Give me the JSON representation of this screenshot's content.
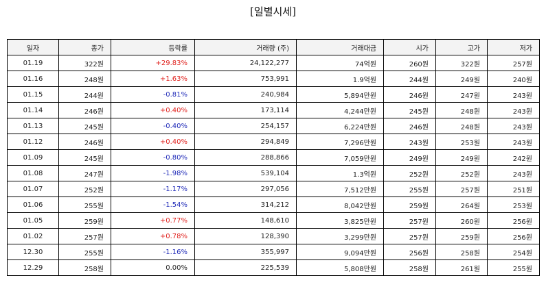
{
  "title": "[일별시세]",
  "colors": {
    "up": "#e0201c",
    "down": "#1f2ab8",
    "flat": "#222222",
    "header_bg": "#f3f3f3",
    "border": "#000000"
  },
  "columns": [
    "일자",
    "종가",
    "등락률",
    "거래량 (주)",
    "거래대금",
    "시가",
    "고가",
    "저가"
  ],
  "rows": [
    {
      "date": "01.19",
      "close": "322원",
      "change": "+29.83%",
      "dir": "up",
      "volume": "24,122,277",
      "amount": "74억원",
      "open": "260원",
      "high": "322원",
      "low": "257원"
    },
    {
      "date": "01.16",
      "close": "248원",
      "change": "+1.63%",
      "dir": "up",
      "volume": "753,991",
      "amount": "1.9억원",
      "open": "244원",
      "high": "249원",
      "low": "240원"
    },
    {
      "date": "01.15",
      "close": "244원",
      "change": "-0.81%",
      "dir": "down",
      "volume": "240,984",
      "amount": "5,894만원",
      "open": "246원",
      "high": "247원",
      "low": "243원"
    },
    {
      "date": "01.14",
      "close": "246원",
      "change": "+0.40%",
      "dir": "up",
      "volume": "173,114",
      "amount": "4,244만원",
      "open": "245원",
      "high": "248원",
      "low": "243원"
    },
    {
      "date": "01.13",
      "close": "245원",
      "change": "-0.40%",
      "dir": "down",
      "volume": "254,157",
      "amount": "6,224만원",
      "open": "246원",
      "high": "248원",
      "low": "243원"
    },
    {
      "date": "01.12",
      "close": "246원",
      "change": "+0.40%",
      "dir": "up",
      "volume": "294,849",
      "amount": "7,296만원",
      "open": "243원",
      "high": "253원",
      "low": "243원"
    },
    {
      "date": "01.09",
      "close": "245원",
      "change": "-0.80%",
      "dir": "down",
      "volume": "288,866",
      "amount": "7,059만원",
      "open": "249원",
      "high": "249원",
      "low": "242원"
    },
    {
      "date": "01.08",
      "close": "247원",
      "change": "-1.98%",
      "dir": "down",
      "volume": "539,104",
      "amount": "1.3억원",
      "open": "252원",
      "high": "252원",
      "low": "243원"
    },
    {
      "date": "01.07",
      "close": "252원",
      "change": "-1.17%",
      "dir": "down",
      "volume": "297,056",
      "amount": "7,512만원",
      "open": "255원",
      "high": "257원",
      "low": "251원"
    },
    {
      "date": "01.06",
      "close": "255원",
      "change": "-1.54%",
      "dir": "down",
      "volume": "314,212",
      "amount": "8,042만원",
      "open": "259원",
      "high": "264원",
      "low": "253원"
    },
    {
      "date": "01.05",
      "close": "259원",
      "change": "+0.77%",
      "dir": "up",
      "volume": "148,610",
      "amount": "3,825만원",
      "open": "257원",
      "high": "260원",
      "low": "256원"
    },
    {
      "date": "01.02",
      "close": "257원",
      "change": "+0.78%",
      "dir": "up",
      "volume": "128,390",
      "amount": "3,299만원",
      "open": "257원",
      "high": "259원",
      "low": "256원"
    },
    {
      "date": "12.30",
      "close": "255원",
      "change": "-1.16%",
      "dir": "down",
      "volume": "355,997",
      "amount": "9,094만원",
      "open": "256원",
      "high": "258원",
      "low": "254원"
    },
    {
      "date": "12.29",
      "close": "258원",
      "change": "0.00%",
      "dir": "flat",
      "volume": "225,539",
      "amount": "5,808만원",
      "open": "258원",
      "high": "261원",
      "low": "255원"
    }
  ]
}
